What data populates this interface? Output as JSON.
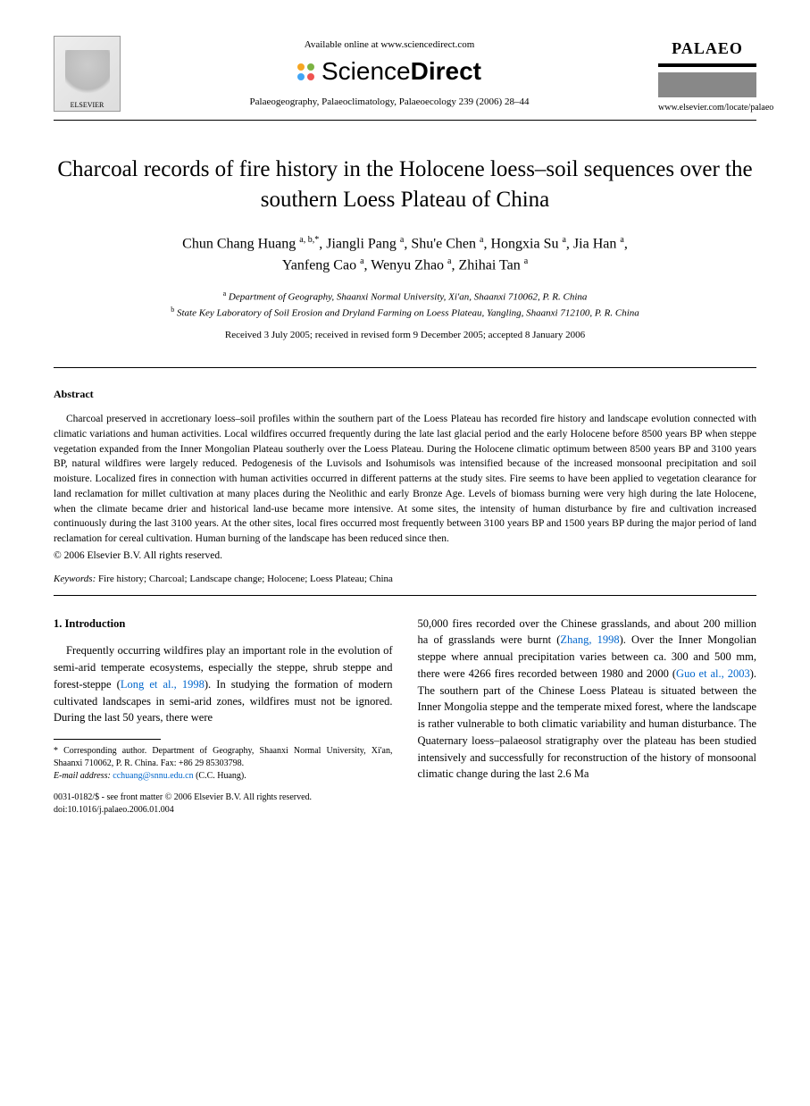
{
  "header": {
    "elsevier_label": "ELSEVIER",
    "available_online": "Available online at www.sciencedirect.com",
    "sd_brand_left": "Science",
    "sd_brand_right": "Direct",
    "citation": "Palaeogeography, Palaeoclimatology, Palaeoecology 239 (2006) 28–44",
    "palaeo_label": "PALAEO",
    "journal_url": "www.elsevier.com/locate/palaeo"
  },
  "title": "Charcoal records of fire history in the Holocene loess–soil sequences over the southern Loess Plateau of China",
  "authors_line1": "Chun Chang Huang ",
  "authors_sup1": "a, b,*",
  "authors_mid1": ", Jiangli Pang ",
  "authors_sup2": "a",
  "authors_mid2": ", Shu'e Chen ",
  "authors_sup3": "a",
  "authors_mid3": ", Hongxia Su ",
  "authors_sup4": "a",
  "authors_mid4": ", Jia Han ",
  "authors_sup5": "a",
  "authors_mid5": ",",
  "authors_line2a": "Yanfeng Cao ",
  "authors_sup6": "a",
  "authors_mid6": ", Wenyu Zhao ",
  "authors_sup7": "a",
  "authors_mid7": ", Zhihai Tan ",
  "authors_sup8": "a",
  "affiliations": {
    "a_sup": "a",
    "a": " Department of Geography, Shaanxi Normal University, Xi'an, Shaanxi 710062, P. R. China",
    "b_sup": "b",
    "b": " State Key Laboratory of Soil Erosion and Dryland Farming on Loess Plateau, Yangling, Shaanxi 712100, P. R. China"
  },
  "dates": "Received 3 July 2005; received in revised form 9 December 2005; accepted 8 January 2006",
  "abstract": {
    "heading": "Abstract",
    "body": "Charcoal preserved in accretionary loess–soil profiles within the southern part of the Loess Plateau has recorded fire history and landscape evolution connected with climatic variations and human activities. Local wildfires occurred frequently during the late last glacial period and the early Holocene before 8500 years BP when steppe vegetation expanded from the Inner Mongolian Plateau southerly over the Loess Plateau. During the Holocene climatic optimum between 8500 years BP and 3100 years BP, natural wildfires were largely reduced. Pedogenesis of the Luvisols and Isohumisols was intensified because of the increased monsoonal precipitation and soil moisture. Localized fires in connection with human activities occurred in different patterns at the study sites. Fire seems to have been applied to vegetation clearance for land reclamation for millet cultivation at many places during the Neolithic and early Bronze Age. Levels of biomass burning were very high during the late Holocene, when the climate became drier and historical land-use became more intensive. At some sites, the intensity of human disturbance by fire and cultivation increased continuously during the last 3100 years. At the other sites, local fires occurred most frequently between 3100 years BP and 1500 years BP during the major period of land reclamation for cereal cultivation. Human burning of the landscape has been reduced since then.",
    "copyright": "© 2006 Elsevier B.V. All rights reserved.",
    "keywords_label": "Keywords:",
    "keywords": " Fire history; Charcoal; Landscape change; Holocene; Loess Plateau; China"
  },
  "intro": {
    "heading": "1. Introduction",
    "col1_pre": "Frequently occurring wildfires play an important role in the evolution of semi-arid temperate ecosystems, especially the steppe, shrub steppe and forest-steppe (",
    "cite1": "Long et al., 1998",
    "col1_post": "). In studying the formation of modern cultivated landscapes in semi-arid zones, wildfires must not be ignored. During the last 50 years, there were",
    "col2_pre": "50,000 fires recorded over the Chinese grasslands, and about 200 million ha of grasslands were burnt (",
    "cite2": "Zhang, 1998",
    "col2_mid1": "). Over the Inner Mongolian steppe where annual precipitation varies between ca. 300 and 500 mm, there were 4266 fires recorded between 1980 and 2000 (",
    "cite3": "Guo et al., 2003",
    "col2_post": "). The southern part of the Chinese Loess Plateau is situated between the Inner Mongolia steppe and the temperate mixed forest, where the landscape is rather vulnerable to both climatic variability and human disturbance. The Quaternary loess–palaeosol stratigraphy over the plateau has been studied intensively and successfully for reconstruction of the history of monsoonal climatic change during the last 2.6 Ma"
  },
  "footnote": {
    "corr": "* Corresponding author. Department of Geography, Shaanxi Normal University, Xi'an, Shaanxi 710062, P. R. China. Fax: +86 29 85303798.",
    "email_label": "E-mail address:",
    "email": " cchuang@snnu.edu.cn",
    "email_name": " (C.C. Huang)."
  },
  "footer": {
    "line1": "0031-0182/$ - see front matter © 2006 Elsevier B.V. All rights reserved.",
    "line2": "doi:10.1016/j.palaeo.2006.01.004"
  }
}
